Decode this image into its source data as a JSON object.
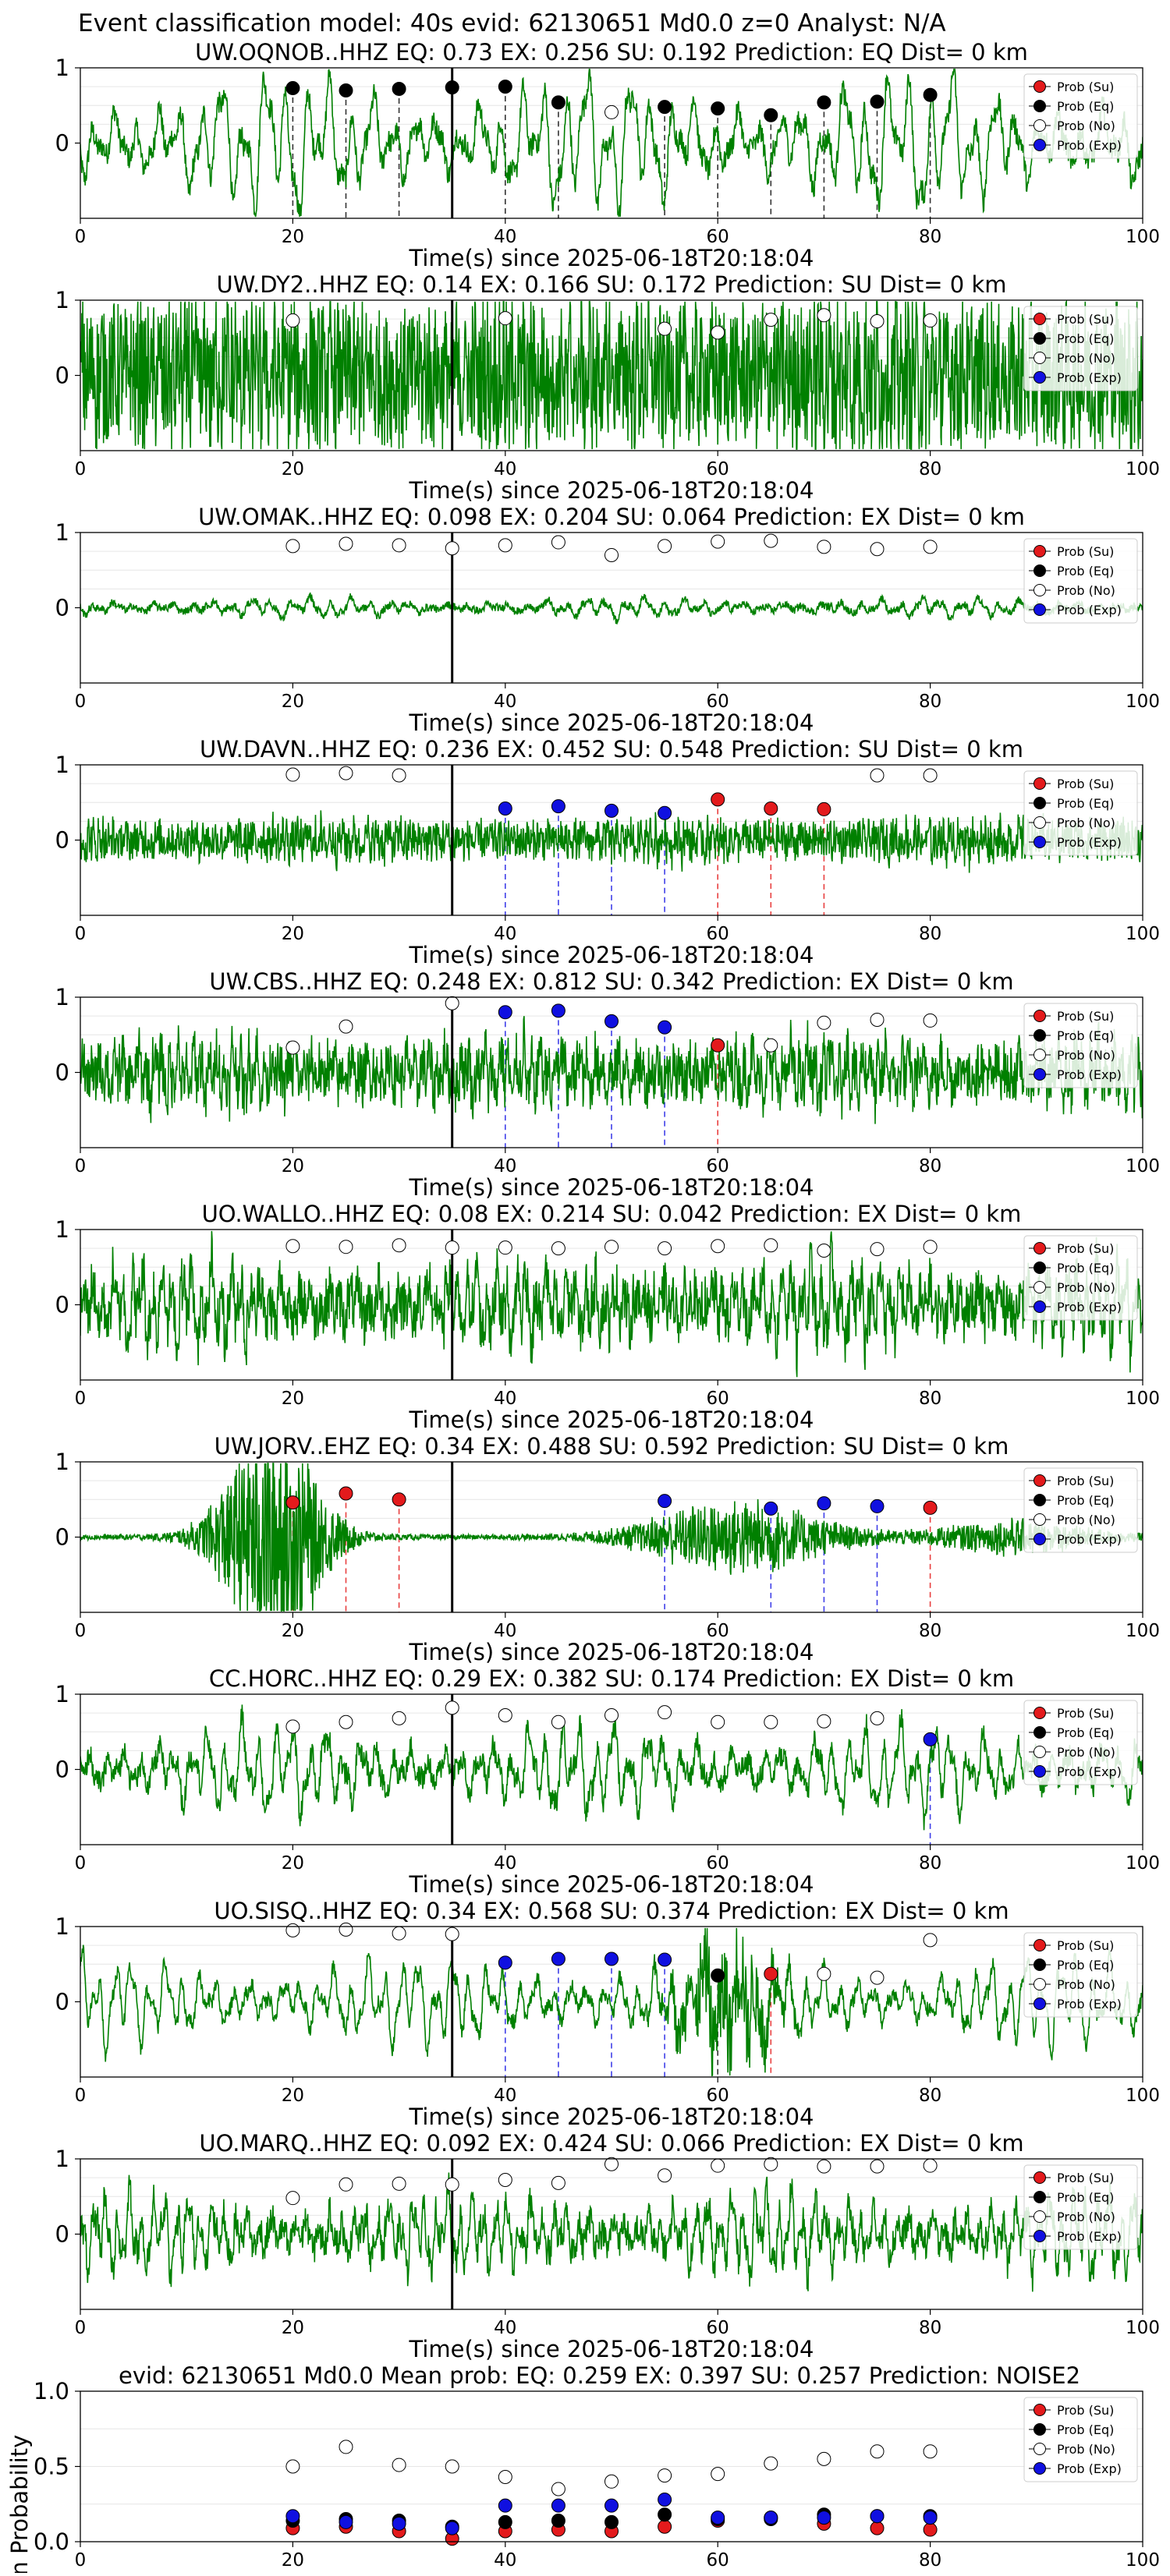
{
  "figure_title": "Event classification model: 40s evid: 62130651 Md0.0 z=0 Analyst: N/A",
  "legend": [
    "Prob (Su)",
    "Prob (Eq)",
    "Prob (No)",
    "Prob (Exp)"
  ],
  "colors": {
    "su": "#e31a1c",
    "eq": "#000000",
    "no": "#ffffff",
    "exp": "#1010e0",
    "wave": "#008000",
    "su_line": "#e84040",
    "exp_line": "#4040e8"
  },
  "xlabel": "Time(s) since 2025-06-18T20:18:04",
  "chart_data": [
    {
      "type": "line",
      "title": "UW.OQNOB..HHZ   EQ: 0.73   EX: 0.256   SU: 0.192   Prediction: EQ    Dist= 0 km",
      "xlim": [
        0,
        100
      ],
      "ylim": [
        -1,
        1
      ],
      "xticks": [
        0,
        20,
        40,
        60,
        80,
        100
      ],
      "yticks": [
        1,
        0
      ],
      "xlabel": "Time(s) since 2025-06-18T20:18:04",
      "waveform": {
        "amp": 0.85,
        "noise": 0.15,
        "freq": 0.55,
        "env": "uniform"
      },
      "pick_time": 35,
      "points": [
        {
          "x": 20,
          "y": 0.73,
          "c": "eq"
        },
        {
          "x": 25,
          "y": 0.7,
          "c": "eq"
        },
        {
          "x": 30,
          "y": 0.72,
          "c": "eq"
        },
        {
          "x": 35,
          "y": 0.74,
          "c": "eq"
        },
        {
          "x": 40,
          "y": 0.75,
          "c": "eq"
        },
        {
          "x": 45,
          "y": 0.54,
          "c": "eq"
        },
        {
          "x": 50,
          "y": 0.41,
          "c": "no"
        },
        {
          "x": 55,
          "y": 0.48,
          "c": "eq"
        },
        {
          "x": 60,
          "y": 0.46,
          "c": "eq"
        },
        {
          "x": 65,
          "y": 0.37,
          "c": "eq"
        },
        {
          "x": 70,
          "y": 0.54,
          "c": "eq"
        },
        {
          "x": 75,
          "y": 0.55,
          "c": "eq"
        },
        {
          "x": 80,
          "y": 0.64,
          "c": "eq"
        }
      ]
    },
    {
      "type": "line",
      "title": "UW.DY2..HHZ   EQ: 0.14   EX: 0.166   SU: 0.172   Prediction: SU    Dist= 0 km",
      "xlim": [
        0,
        100
      ],
      "ylim": [
        -1,
        1
      ],
      "xticks": [
        0,
        20,
        40,
        60,
        80,
        100
      ],
      "yticks": [
        1,
        0
      ],
      "xlabel": "Time(s) since 2025-06-18T20:18:04",
      "waveform": {
        "amp": 0.5,
        "noise": 0.9,
        "freq": 3,
        "env": "uniform"
      },
      "pick_time": 35,
      "points": [
        {
          "x": 20,
          "y": 0.73,
          "c": "no"
        },
        {
          "x": 40,
          "y": 0.76,
          "c": "no"
        },
        {
          "x": 55,
          "y": 0.62,
          "c": "no"
        },
        {
          "x": 60,
          "y": 0.57,
          "c": "no"
        },
        {
          "x": 65,
          "y": 0.74,
          "c": "no"
        },
        {
          "x": 70,
          "y": 0.8,
          "c": "no"
        },
        {
          "x": 75,
          "y": 0.72,
          "c": "no"
        },
        {
          "x": 80,
          "y": 0.73,
          "c": "no"
        }
      ]
    },
    {
      "type": "line",
      "title": "UW.OMAK..HHZ   EQ: 0.098   EX: 0.204   SU: 0.064   Prediction: EX    Dist= 0 km",
      "xlim": [
        0,
        100
      ],
      "ylim": [
        -1,
        1
      ],
      "xticks": [
        0,
        20,
        40,
        60,
        80,
        100
      ],
      "yticks": [
        1,
        0
      ],
      "xlabel": "Time(s) since 2025-06-18T20:18:04",
      "waveform": {
        "amp": 0.12,
        "noise": 0.05,
        "freq": 0.6,
        "env": "uniform"
      },
      "pick_time": 35,
      "points": [
        {
          "x": 20,
          "y": 0.82,
          "c": "no"
        },
        {
          "x": 25,
          "y": 0.85,
          "c": "no"
        },
        {
          "x": 30,
          "y": 0.83,
          "c": "no"
        },
        {
          "x": 35,
          "y": 0.79,
          "c": "no"
        },
        {
          "x": 40,
          "y": 0.83,
          "c": "no"
        },
        {
          "x": 45,
          "y": 0.87,
          "c": "no"
        },
        {
          "x": 50,
          "y": 0.7,
          "c": "no"
        },
        {
          "x": 55,
          "y": 0.82,
          "c": "no"
        },
        {
          "x": 60,
          "y": 0.88,
          "c": "no"
        },
        {
          "x": 65,
          "y": 0.89,
          "c": "no"
        },
        {
          "x": 70,
          "y": 0.81,
          "c": "no"
        },
        {
          "x": 75,
          "y": 0.78,
          "c": "no"
        },
        {
          "x": 80,
          "y": 0.81,
          "c": "no"
        }
      ]
    },
    {
      "type": "line",
      "title": "UW.DAVN..HHZ   EQ: 0.236   EX: 0.452   SU: 0.548   Prediction: SU    Dist= 0 km",
      "xlim": [
        0,
        100
      ],
      "ylim": [
        -1,
        1
      ],
      "xticks": [
        0,
        20,
        40,
        60,
        80,
        100
      ],
      "yticks": [
        1,
        0
      ],
      "xlabel": "Time(s) since 2025-06-18T20:18:04",
      "waveform": {
        "amp": 0.15,
        "noise": 0.25,
        "freq": 2.5,
        "env": "uniform"
      },
      "pick_time": 35,
      "points": [
        {
          "x": 20,
          "y": 0.87,
          "c": "no"
        },
        {
          "x": 25,
          "y": 0.89,
          "c": "no"
        },
        {
          "x": 30,
          "y": 0.86,
          "c": "no"
        },
        {
          "x": 40,
          "y": 0.42,
          "c": "exp"
        },
        {
          "x": 45,
          "y": 0.45,
          "c": "exp"
        },
        {
          "x": 50,
          "y": 0.39,
          "c": "exp"
        },
        {
          "x": 55,
          "y": 0.36,
          "c": "exp"
        },
        {
          "x": 60,
          "y": 0.54,
          "c": "su"
        },
        {
          "x": 65,
          "y": 0.42,
          "c": "su"
        },
        {
          "x": 70,
          "y": 0.41,
          "c": "su"
        },
        {
          "x": 75,
          "y": 0.86,
          "c": "no"
        },
        {
          "x": 80,
          "y": 0.86,
          "c": "no"
        }
      ]
    },
    {
      "type": "line",
      "title": "UW.CBS..HHZ   EQ: 0.248   EX: 0.812   SU: 0.342   Prediction: EX    Dist= 0 km",
      "xlim": [
        0,
        100
      ],
      "ylim": [
        -1,
        1
      ],
      "xticks": [
        0,
        20,
        40,
        60,
        80,
        100
      ],
      "yticks": [
        1,
        0
      ],
      "xlabel": "Time(s) since 2025-06-18T20:18:04",
      "waveform": {
        "amp": 0.35,
        "noise": 0.35,
        "freq": 1.5,
        "env": "uniform"
      },
      "pick_time": 35,
      "points": [
        {
          "x": 20,
          "y": 0.33,
          "c": "no"
        },
        {
          "x": 25,
          "y": 0.61,
          "c": "no"
        },
        {
          "x": 35,
          "y": 0.92,
          "c": "no"
        },
        {
          "x": 40,
          "y": 0.8,
          "c": "exp"
        },
        {
          "x": 45,
          "y": 0.82,
          "c": "exp"
        },
        {
          "x": 50,
          "y": 0.68,
          "c": "exp"
        },
        {
          "x": 55,
          "y": 0.6,
          "c": "exp"
        },
        {
          "x": 60,
          "y": 0.36,
          "c": "su"
        },
        {
          "x": 65,
          "y": 0.36,
          "c": "no"
        },
        {
          "x": 70,
          "y": 0.66,
          "c": "no"
        },
        {
          "x": 75,
          "y": 0.7,
          "c": "no"
        },
        {
          "x": 80,
          "y": 0.69,
          "c": "no"
        }
      ]
    },
    {
      "type": "line",
      "title": "UO.WALLO..HHZ   EQ: 0.08   EX: 0.214   SU: 0.042   Prediction: EX    Dist= 0 km",
      "xlim": [
        0,
        100
      ],
      "ylim": [
        -1,
        1
      ],
      "xticks": [
        0,
        20,
        40,
        60,
        80,
        100
      ],
      "yticks": [
        1,
        0
      ],
      "xlabel": "Time(s) since 2025-06-18T20:18:04",
      "waveform": {
        "amp": 0.5,
        "noise": 0.35,
        "freq": 1.2,
        "env": "uniform"
      },
      "pick_time": 35,
      "points": [
        {
          "x": 20,
          "y": 0.78,
          "c": "no"
        },
        {
          "x": 25,
          "y": 0.77,
          "c": "no"
        },
        {
          "x": 30,
          "y": 0.79,
          "c": "no"
        },
        {
          "x": 35,
          "y": 0.76,
          "c": "no"
        },
        {
          "x": 40,
          "y": 0.76,
          "c": "no"
        },
        {
          "x": 45,
          "y": 0.75,
          "c": "no"
        },
        {
          "x": 50,
          "y": 0.77,
          "c": "no"
        },
        {
          "x": 55,
          "y": 0.75,
          "c": "no"
        },
        {
          "x": 60,
          "y": 0.78,
          "c": "no"
        },
        {
          "x": 65,
          "y": 0.79,
          "c": "no"
        },
        {
          "x": 70,
          "y": 0.72,
          "c": "no"
        },
        {
          "x": 75,
          "y": 0.74,
          "c": "no"
        },
        {
          "x": 80,
          "y": 0.77,
          "c": "no"
        }
      ]
    },
    {
      "type": "line",
      "title": "UW.JORV..EHZ   EQ: 0.34   EX: 0.488   SU: 0.592   Prediction: SU    Dist= 0 km",
      "xlim": [
        0,
        100
      ],
      "ylim": [
        -1,
        1
      ],
      "xticks": [
        0,
        20,
        40,
        60,
        80,
        100
      ],
      "yticks": [
        1,
        0
      ],
      "xlabel": "Time(s) since 2025-06-18T20:18:04",
      "waveform": {
        "amp": 0.02,
        "noise": 0.02,
        "freq": 2,
        "env": "bursts",
        "bursts": [
          {
            "c": 18,
            "w": 5,
            "a": 0.9
          },
          {
            "c": 62,
            "w": 9,
            "a": 0.28
          },
          {
            "c": 88,
            "w": 8,
            "a": 0.12
          }
        ]
      },
      "pick_time": 35,
      "points": [
        {
          "x": 20,
          "y": 0.46,
          "c": "su"
        },
        {
          "x": 25,
          "y": 0.58,
          "c": "su"
        },
        {
          "x": 30,
          "y": 0.5,
          "c": "su"
        },
        {
          "x": 55,
          "y": 0.48,
          "c": "exp"
        },
        {
          "x": 65,
          "y": 0.38,
          "c": "exp"
        },
        {
          "x": 70,
          "y": 0.45,
          "c": "exp"
        },
        {
          "x": 75,
          "y": 0.41,
          "c": "exp"
        },
        {
          "x": 80,
          "y": 0.39,
          "c": "su"
        }
      ]
    },
    {
      "type": "line",
      "title": "CC.HORC..HHZ   EQ: 0.29   EX: 0.382   SU: 0.174   Prediction: EX    Dist= 0 km",
      "xlim": [
        0,
        100
      ],
      "ylim": [
        -1,
        1
      ],
      "xticks": [
        0,
        20,
        40,
        60,
        80,
        100
      ],
      "yticks": [
        1,
        0
      ],
      "xlabel": "Time(s) since 2025-06-18T20:18:04",
      "waveform": {
        "amp": 0.55,
        "noise": 0.15,
        "freq": 0.7,
        "env": "uniform"
      },
      "pick_time": 35,
      "points": [
        {
          "x": 20,
          "y": 0.57,
          "c": "no"
        },
        {
          "x": 25,
          "y": 0.63,
          "c": "no"
        },
        {
          "x": 30,
          "y": 0.68,
          "c": "no"
        },
        {
          "x": 35,
          "y": 0.82,
          "c": "no"
        },
        {
          "x": 40,
          "y": 0.72,
          "c": "no"
        },
        {
          "x": 45,
          "y": 0.63,
          "c": "no"
        },
        {
          "x": 50,
          "y": 0.72,
          "c": "no"
        },
        {
          "x": 55,
          "y": 0.76,
          "c": "no"
        },
        {
          "x": 60,
          "y": 0.63,
          "c": "no"
        },
        {
          "x": 65,
          "y": 0.63,
          "c": "no"
        },
        {
          "x": 70,
          "y": 0.64,
          "c": "no"
        },
        {
          "x": 75,
          "y": 0.68,
          "c": "no"
        },
        {
          "x": 80,
          "y": 0.4,
          "c": "exp"
        }
      ]
    },
    {
      "type": "line",
      "title": "UO.SISQ..HHZ   EQ: 0.34   EX: 0.568   SU: 0.374   Prediction: EX    Dist= 0 km",
      "xlim": [
        0,
        100
      ],
      "ylim": [
        -1,
        1
      ],
      "xticks": [
        0,
        20,
        40,
        60,
        80,
        100
      ],
      "yticks": [
        1,
        0
      ],
      "xlabel": "Time(s) since 2025-06-18T20:18:04",
      "waveform": {
        "amp": 0.55,
        "noise": 0.1,
        "freq": 0.7,
        "env": "bursts_on_base",
        "bursts": [
          {
            "c": 61,
            "w": 5,
            "a": 0.35
          }
        ]
      },
      "pick_time": 35,
      "points": [
        {
          "x": 20,
          "y": 0.95,
          "c": "no"
        },
        {
          "x": 25,
          "y": 0.96,
          "c": "no"
        },
        {
          "x": 30,
          "y": 0.91,
          "c": "no"
        },
        {
          "x": 35,
          "y": 0.9,
          "c": "no"
        },
        {
          "x": 40,
          "y": 0.52,
          "c": "exp"
        },
        {
          "x": 45,
          "y": 0.57,
          "c": "exp"
        },
        {
          "x": 50,
          "y": 0.57,
          "c": "exp"
        },
        {
          "x": 55,
          "y": 0.56,
          "c": "exp"
        },
        {
          "x": 60,
          "y": 0.35,
          "c": "eq"
        },
        {
          "x": 65,
          "y": 0.37,
          "c": "su"
        },
        {
          "x": 70,
          "y": 0.37,
          "c": "no"
        },
        {
          "x": 75,
          "y": 0.32,
          "c": "no"
        },
        {
          "x": 80,
          "y": 0.82,
          "c": "no"
        }
      ]
    },
    {
      "type": "line",
      "title": "UO.MARQ..HHZ   EQ: 0.092   EX: 0.424   SU: 0.066   Prediction: EX    Dist= 0 km",
      "xlim": [
        0,
        100
      ],
      "ylim": [
        -1,
        1
      ],
      "xticks": [
        0,
        20,
        40,
        60,
        80,
        100
      ],
      "yticks": [
        1,
        0
      ],
      "xlabel": "Time(s) since 2025-06-18T20:18:04",
      "waveform": {
        "amp": 0.5,
        "noise": 0.2,
        "freq": 1.0,
        "env": "uniform"
      },
      "pick_time": 35,
      "points": [
        {
          "x": 20,
          "y": 0.48,
          "c": "no"
        },
        {
          "x": 25,
          "y": 0.66,
          "c": "no"
        },
        {
          "x": 30,
          "y": 0.67,
          "c": "no"
        },
        {
          "x": 35,
          "y": 0.66,
          "c": "no"
        },
        {
          "x": 40,
          "y": 0.72,
          "c": "no"
        },
        {
          "x": 45,
          "y": 0.68,
          "c": "no"
        },
        {
          "x": 50,
          "y": 0.93,
          "c": "no"
        },
        {
          "x": 55,
          "y": 0.78,
          "c": "no"
        },
        {
          "x": 60,
          "y": 0.91,
          "c": "no"
        },
        {
          "x": 65,
          "y": 0.93,
          "c": "no"
        },
        {
          "x": 70,
          "y": 0.9,
          "c": "no"
        },
        {
          "x": 75,
          "y": 0.9,
          "c": "no"
        },
        {
          "x": 80,
          "y": 0.91,
          "c": "no"
        }
      ]
    },
    {
      "type": "scatter",
      "title": "evid: 62130651   Md0.0    Mean prob:    EQ: 0.259   EX: 0.397   SU: 0.257    Prediction: NOISE2",
      "xlim": [
        0,
        100
      ],
      "ylim": [
        0,
        1
      ],
      "xticks": [
        0,
        20,
        40,
        60,
        80,
        100
      ],
      "yticks": [
        1.0,
        0.5,
        0.0
      ],
      "ylabel": "Mean Probability",
      "series": [
        {
          "name": "Prob (Su)",
          "c": "su",
          "x": [
            20,
            25,
            30,
            35,
            40,
            45,
            50,
            55,
            60,
            65,
            70,
            75,
            80
          ],
          "y": [
            0.09,
            0.1,
            0.07,
            0.02,
            0.07,
            0.08,
            0.07,
            0.1,
            0.14,
            0.16,
            0.12,
            0.09,
            0.08
          ]
        },
        {
          "name": "Prob (Eq)",
          "c": "eq",
          "x": [
            20,
            25,
            30,
            35,
            40,
            45,
            50,
            55,
            60,
            65,
            70,
            75,
            80
          ],
          "y": [
            0.14,
            0.15,
            0.14,
            0.1,
            0.13,
            0.14,
            0.13,
            0.18,
            0.15,
            0.15,
            0.18,
            0.17,
            0.17
          ]
        },
        {
          "name": "Prob (No)",
          "c": "no",
          "x": [
            20,
            25,
            30,
            35,
            40,
            45,
            50,
            55,
            60,
            65,
            70,
            75,
            80
          ],
          "y": [
            0.5,
            0.63,
            0.51,
            0.5,
            0.43,
            0.35,
            0.4,
            0.44,
            0.45,
            0.52,
            0.55,
            0.6,
            0.6
          ]
        },
        {
          "name": "Prob (Exp)",
          "c": "exp",
          "x": [
            20,
            25,
            30,
            35,
            40,
            45,
            50,
            55,
            60,
            65,
            70,
            75,
            80
          ],
          "y": [
            0.17,
            0.13,
            0.12,
            0.09,
            0.24,
            0.24,
            0.24,
            0.28,
            0.16,
            0.16,
            0.16,
            0.17,
            0.16
          ]
        }
      ]
    }
  ]
}
